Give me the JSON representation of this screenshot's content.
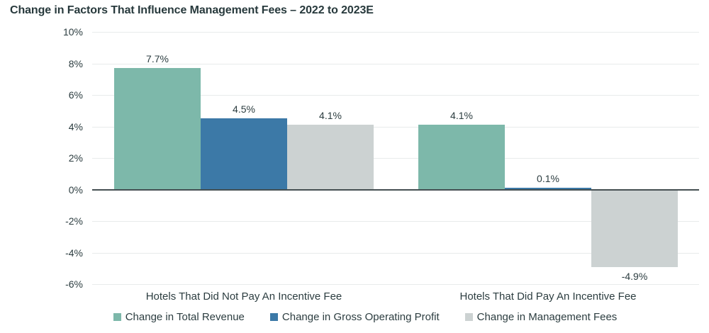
{
  "chart": {
    "title": "Change in Factors That Influence Management Fees – 2022 to 2023E"
  },
  "chart_data": {
    "type": "bar",
    "title": "Change in Factors That Influence Management Fees – 2022 to 2023E",
    "categories": [
      "Hotels That Did Not Pay An Incentive Fee",
      "Hotels That Did Pay An Incentive Fee"
    ],
    "series": [
      {
        "name": "Change in Total Revenue",
        "color": "#7db8aa",
        "values": [
          7.7,
          4.1
        ],
        "value_labels": [
          "7.7%",
          "4.1%"
        ]
      },
      {
        "name": "Change in Gross Operating Profit",
        "color": "#3c79a7",
        "values": [
          4.5,
          0.1
        ],
        "value_labels": [
          "4.5%",
          "0.1%"
        ]
      },
      {
        "name": "Change in Management Fees",
        "color": "#ccd2d2",
        "values": [
          4.1,
          -4.9
        ],
        "value_labels": [
          "4.1%",
          "-4.9%"
        ]
      }
    ],
    "ylim": [
      -6,
      10
    ],
    "yticks": [
      10,
      8,
      6,
      4,
      2,
      0,
      -2,
      -4,
      -6
    ],
    "ytick_labels": [
      "10%",
      "8%",
      "6%",
      "4%",
      "2%",
      "0%",
      "-2%",
      "-4%",
      "-6%"
    ],
    "grid": true,
    "legend_position": "bottom",
    "colors": {
      "title_text": "#27393c",
      "label_text": "#2c3d40",
      "gridline": "#e8ebeb",
      "zero_line": "#454f52",
      "background": "#ffffff"
    }
  }
}
